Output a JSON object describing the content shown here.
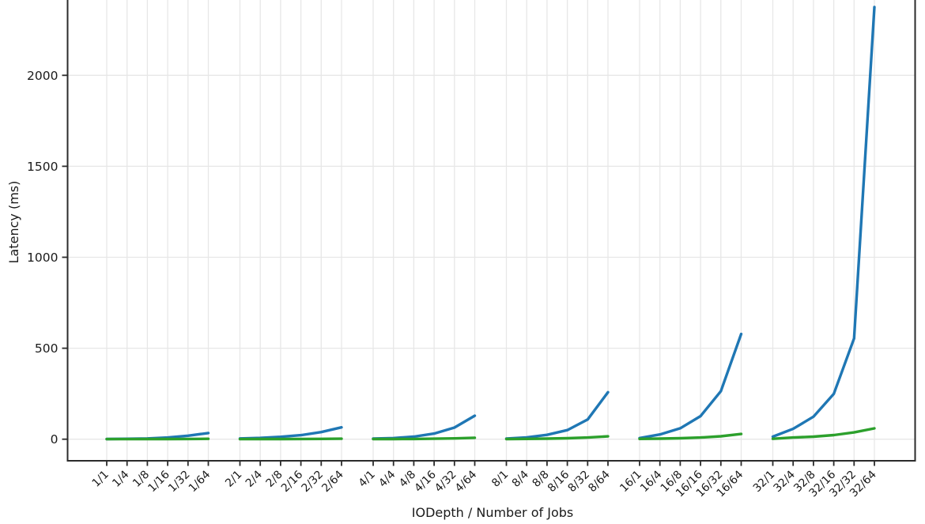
{
  "chart_data": {
    "type": "line",
    "title": "",
    "xlabel": "IODepth / Number of Jobs",
    "ylabel": "Latency (ms)",
    "categories": [
      "1/1",
      "1/4",
      "1/8",
      "1/16",
      "1/32",
      "1/64",
      "2/1",
      "2/4",
      "2/8",
      "2/16",
      "2/32",
      "2/64",
      "4/1",
      "4/4",
      "4/8",
      "4/16",
      "4/32",
      "4/64",
      "8/1",
      "8/4",
      "8/8",
      "8/16",
      "8/32",
      "8/64",
      "16/1",
      "16/4",
      "16/8",
      "16/16",
      "16/32",
      "16/64",
      "32/1",
      "32/4",
      "32/8",
      "32/16",
      "32/32",
      "32/64"
    ],
    "group_size": 6,
    "groups_disconnected": true,
    "yticks": [
      0,
      500,
      1000,
      1500,
      2000
    ],
    "ylim_visible": [
      -120,
      2415
    ],
    "grid": true,
    "legend": "none",
    "cropped_top": true,
    "colors": {
      "blue_series": "#1f77b4",
      "green_series": "#2ca02c",
      "grid": "#e7e7e7",
      "axis": "#2b2b2b",
      "text": "#1a1a1a"
    },
    "series": [
      {
        "name": "blue-series",
        "color": "#1f77b4",
        "values": [
          1,
          2,
          4,
          9,
          19,
          34,
          4,
          7,
          13,
          22,
          39,
          65,
          3,
          6,
          14,
          31,
          64,
          129,
          3,
          10,
          24,
          50,
          108,
          258,
          6,
          26,
          60,
          127,
          264,
          578,
          14,
          57,
          124,
          249,
          554,
          2375
        ]
      },
      {
        "name": "green-series",
        "color": "#2ca02c",
        "values": [
          0.5,
          0.6,
          0.8,
          1.0,
          1.5,
          2.0,
          0.5,
          0.7,
          1.0,
          1.4,
          1.9,
          2.6,
          0.8,
          1.0,
          1.5,
          2.4,
          4.4,
          7.8,
          1.0,
          1.8,
          3.0,
          5.2,
          9.0,
          15.6,
          1.6,
          3.0,
          5.2,
          9.0,
          16.0,
          28.5,
          2.2,
          9.0,
          14.0,
          22.6,
          37.4,
          59.6
        ]
      }
    ]
  }
}
